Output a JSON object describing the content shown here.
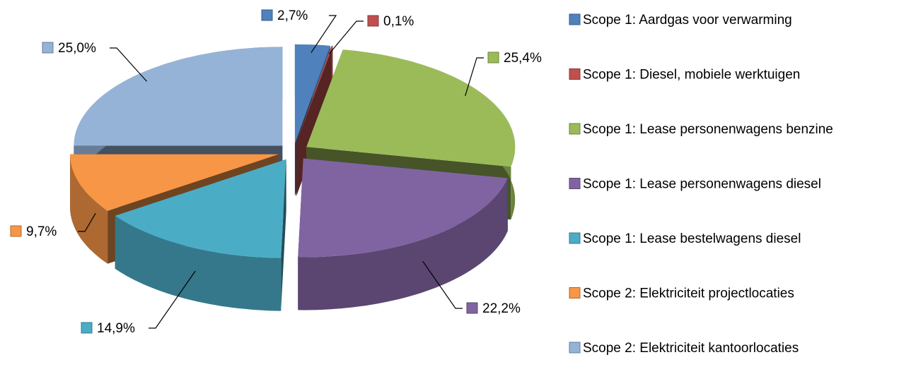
{
  "chart_data": {
    "type": "pie3d",
    "categories": [
      "Scope 1: Aardgas voor verwarming",
      "Scope 1: Diesel, mobiele werktuigen",
      "Scope 1: Lease personenwagens benzine",
      "Scope 1: Lease personenwagens diesel",
      "Scope 1: Lease bestelwagens diesel",
      "Scope 2: Elektriciteit projectlocaties",
      "Scope 2: Elektriciteit kantoorlocaties"
    ],
    "values": [
      2.7,
      0.1,
      25.4,
      22.2,
      14.9,
      9.7,
      25.0
    ],
    "value_labels": [
      "2,7%",
      "0,1%",
      "25,4%",
      "22,2%",
      "14,9%",
      "9,7%",
      "25,0%"
    ],
    "colors": [
      "#4f81bd",
      "#c0504d",
      "#9bbb59",
      "#8064a2",
      "#4bacc6",
      "#f79646",
      "#95b3d7"
    ],
    "legend": "right"
  }
}
